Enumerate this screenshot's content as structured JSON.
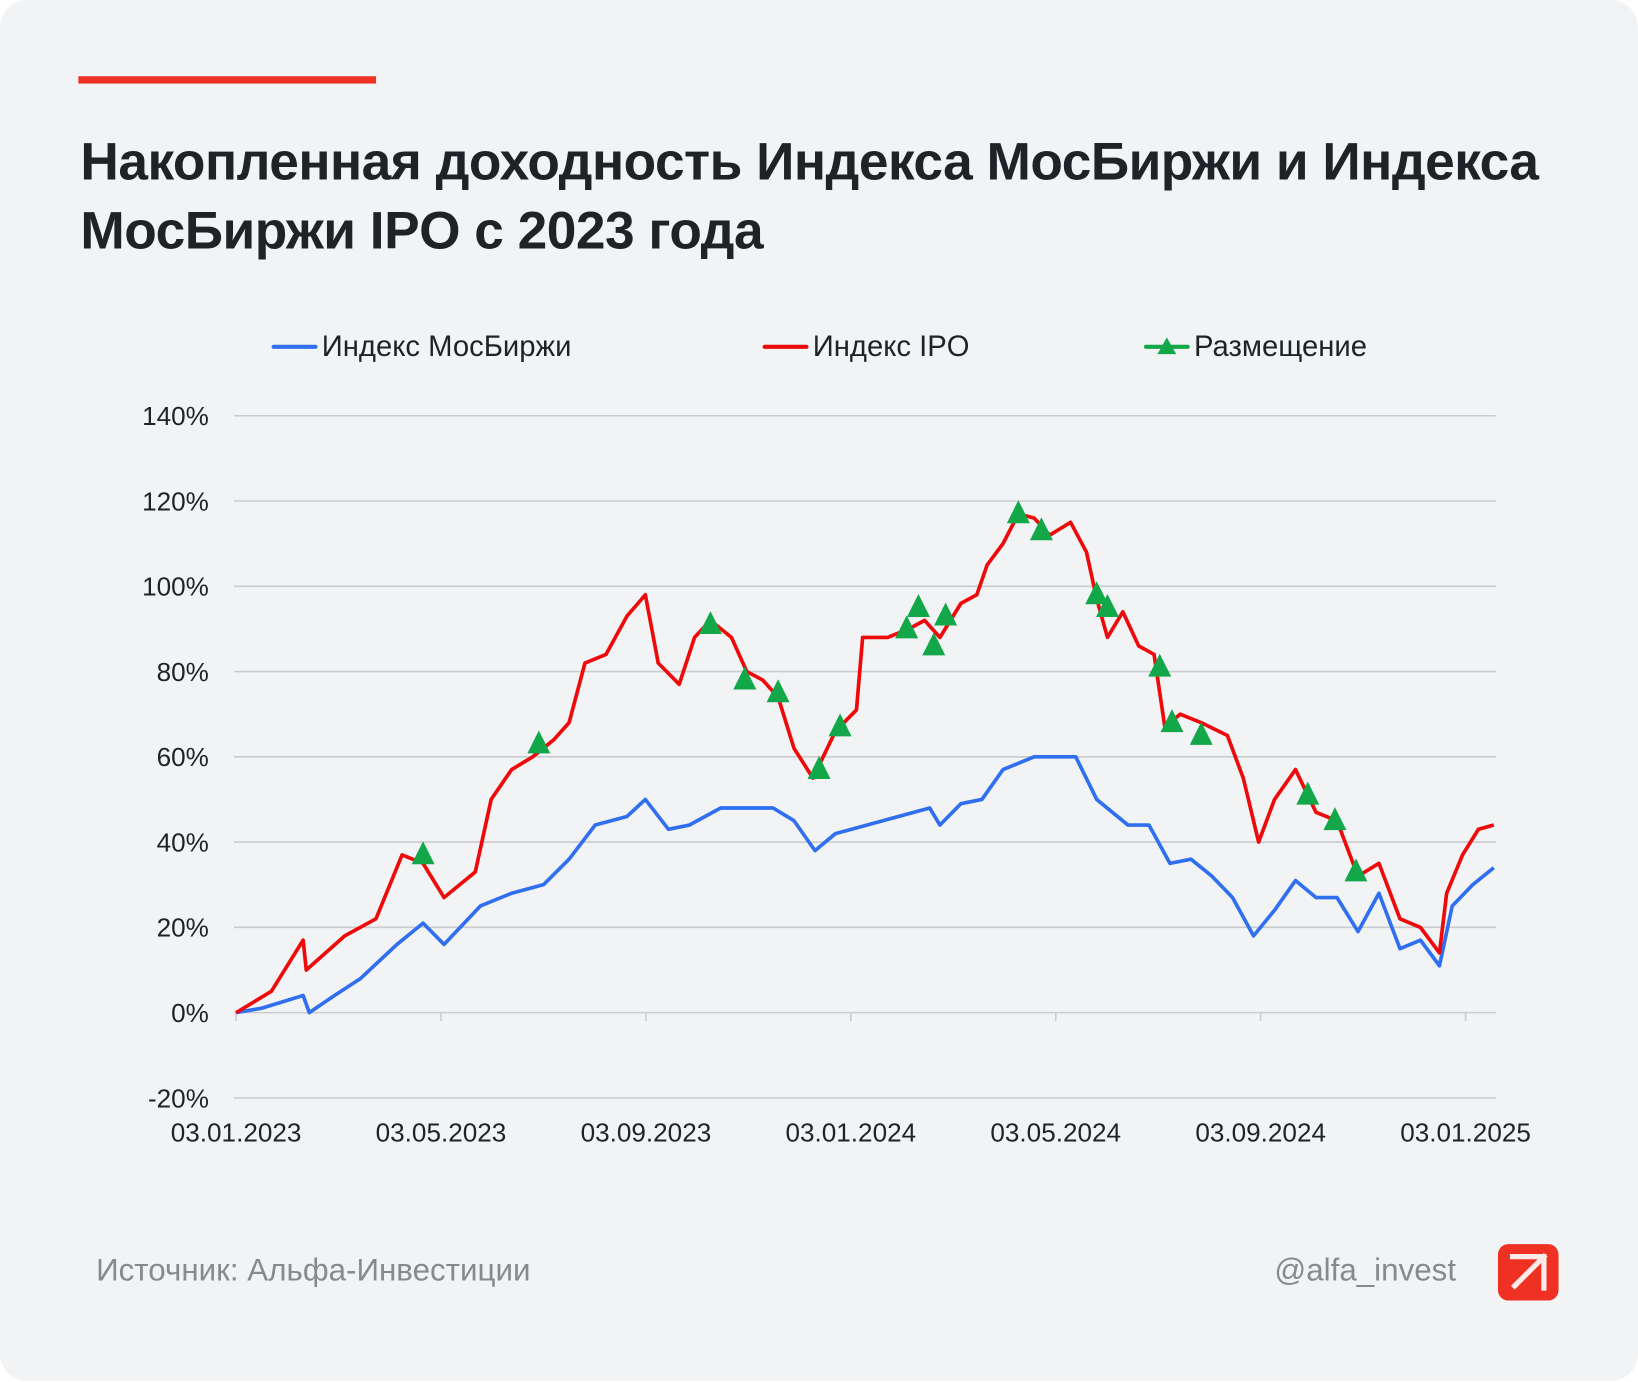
{
  "title": "Накопленная доходность Индекса МосБиржи и Индекса МосБиржи IPO с 2023 года",
  "legend": {
    "moex": "Индекс МосБиржи",
    "ipo": "Индекс IPO",
    "placement": "Размещение"
  },
  "footer": {
    "source": "Источник: Альфа-Инвестиции",
    "handle": "@alfa_invest"
  },
  "colors": {
    "moex": "#2f6ff0",
    "ipo": "#ee0a0a",
    "placement": "#12a84a",
    "accent": "#ef3124"
  },
  "chart_data": {
    "type": "line",
    "x_unit": "months since 03.01.2023",
    "xlim": [
      0,
      24.6
    ],
    "ylim": [
      -20,
      140
    ],
    "grid": true,
    "legend_position": "top",
    "x_ticks": [
      {
        "x": 0,
        "label": "03.01.2023"
      },
      {
        "x": 4,
        "label": "03.05.2023"
      },
      {
        "x": 8,
        "label": "03.09.2023"
      },
      {
        "x": 12,
        "label": "03.01.2024"
      },
      {
        "x": 16,
        "label": "03.05.2024"
      },
      {
        "x": 20,
        "label": "03.09.2024"
      },
      {
        "x": 24,
        "label": "03.01.2025"
      }
    ],
    "y_ticks": [
      {
        "y": 140,
        "label": "140%"
      },
      {
        "y": 120,
        "label": "120%"
      },
      {
        "y": 100,
        "label": "100%"
      },
      {
        "y": 80,
        "label": "80%"
      },
      {
        "y": 60,
        "label": "60%"
      },
      {
        "y": 40,
        "label": "40%"
      },
      {
        "y": 20,
        "label": "20%"
      },
      {
        "y": 0,
        "label": "0%"
      },
      {
        "y": -20,
        "label": "-20%"
      }
    ],
    "series": [
      {
        "name": "Индекс МосБиржи",
        "key": "moex",
        "points": [
          [
            0,
            0
          ],
          [
            0.49,
            1
          ],
          [
            1.31,
            4
          ],
          [
            1.43,
            0
          ],
          [
            1.92,
            4
          ],
          [
            2.43,
            8
          ],
          [
            3.14,
            16
          ],
          [
            3.65,
            21
          ],
          [
            4.06,
            16
          ],
          [
            4.77,
            25
          ],
          [
            5.38,
            28
          ],
          [
            6.0,
            30
          ],
          [
            6.5,
            36
          ],
          [
            7.01,
            44
          ],
          [
            7.63,
            46
          ],
          [
            7.99,
            50
          ],
          [
            8.44,
            43
          ],
          [
            8.85,
            44
          ],
          [
            9.46,
            48
          ],
          [
            9.87,
            48
          ],
          [
            10.48,
            48
          ],
          [
            10.89,
            45
          ],
          [
            11.3,
            38
          ],
          [
            11.7,
            42
          ],
          [
            12.32,
            44
          ],
          [
            12.93,
            46
          ],
          [
            13.54,
            48
          ],
          [
            13.74,
            44
          ],
          [
            14.15,
            49
          ],
          [
            14.56,
            50
          ],
          [
            14.97,
            57
          ],
          [
            15.58,
            60
          ],
          [
            16.39,
            60
          ],
          [
            16.8,
            50
          ],
          [
            17.41,
            44
          ],
          [
            17.82,
            44
          ],
          [
            18.23,
            35
          ],
          [
            18.64,
            36
          ],
          [
            19.05,
            32
          ],
          [
            19.45,
            27
          ],
          [
            19.86,
            18
          ],
          [
            20.27,
            24
          ],
          [
            20.68,
            31
          ],
          [
            21.08,
            27
          ],
          [
            21.49,
            27
          ],
          [
            21.9,
            19
          ],
          [
            22.31,
            28
          ],
          [
            22.72,
            15
          ],
          [
            23.12,
            17
          ],
          [
            23.49,
            11
          ],
          [
            23.74,
            25
          ],
          [
            24.14,
            30
          ],
          [
            24.55,
            34
          ]
        ]
      },
      {
        "name": "Индекс IPO",
        "key": "ipo",
        "points": [
          [
            0,
            0
          ],
          [
            0.69,
            5
          ],
          [
            1.31,
            17
          ],
          [
            1.37,
            10
          ],
          [
            2.12,
            18
          ],
          [
            2.73,
            22
          ],
          [
            3.24,
            37
          ],
          [
            3.65,
            35
          ],
          [
            4.06,
            27
          ],
          [
            4.67,
            33
          ],
          [
            4.98,
            50
          ],
          [
            5.38,
            57
          ],
          [
            5.79,
            60
          ],
          [
            6.2,
            64
          ],
          [
            6.5,
            68
          ],
          [
            6.81,
            82
          ],
          [
            7.22,
            84
          ],
          [
            7.63,
            93
          ],
          [
            7.99,
            98
          ],
          [
            8.24,
            82
          ],
          [
            8.65,
            77
          ],
          [
            8.95,
            88
          ],
          [
            9.26,
            92
          ],
          [
            9.67,
            88
          ],
          [
            9.97,
            80
          ],
          [
            10.28,
            78
          ],
          [
            10.58,
            74
          ],
          [
            10.89,
            62
          ],
          [
            11.26,
            55
          ],
          [
            11.7,
            66
          ],
          [
            12.11,
            71
          ],
          [
            12.23,
            88
          ],
          [
            12.72,
            88
          ],
          [
            13.13,
            90
          ],
          [
            13.44,
            92
          ],
          [
            13.74,
            88
          ],
          [
            14.15,
            96
          ],
          [
            14.46,
            98
          ],
          [
            14.66,
            105
          ],
          [
            14.97,
            110
          ],
          [
            15.27,
            117
          ],
          [
            15.58,
            116
          ],
          [
            15.88,
            112
          ],
          [
            16.29,
            115
          ],
          [
            16.6,
            108
          ],
          [
            16.8,
            97
          ],
          [
            17.01,
            88
          ],
          [
            17.31,
            94
          ],
          [
            17.62,
            86
          ],
          [
            17.92,
            84
          ],
          [
            18.13,
            67
          ],
          [
            18.43,
            70
          ],
          [
            18.84,
            68
          ],
          [
            19.35,
            65
          ],
          [
            19.66,
            55
          ],
          [
            19.96,
            40
          ],
          [
            20.27,
            50
          ],
          [
            20.68,
            57
          ],
          [
            21.08,
            47
          ],
          [
            21.49,
            45
          ],
          [
            21.9,
            32
          ],
          [
            22.31,
            35
          ],
          [
            22.72,
            22
          ],
          [
            23.12,
            20
          ],
          [
            23.49,
            14
          ],
          [
            23.63,
            28
          ],
          [
            23.94,
            37
          ],
          [
            24.25,
            43
          ],
          [
            24.55,
            44
          ]
        ]
      }
    ],
    "placements": [
      [
        3.65,
        37
      ],
      [
        5.91,
        63
      ],
      [
        9.26,
        91
      ],
      [
        9.93,
        78
      ],
      [
        10.58,
        75
      ],
      [
        11.38,
        57
      ],
      [
        11.79,
        67
      ],
      [
        13.09,
        90
      ],
      [
        13.32,
        95
      ],
      [
        13.62,
        86
      ],
      [
        13.85,
        93
      ],
      [
        15.27,
        117
      ],
      [
        15.72,
        113
      ],
      [
        16.8,
        98
      ],
      [
        17.01,
        95
      ],
      [
        18.03,
        81
      ],
      [
        18.27,
        68
      ],
      [
        18.84,
        65
      ],
      [
        20.92,
        51
      ],
      [
        21.45,
        45
      ],
      [
        21.86,
        33
      ]
    ]
  }
}
